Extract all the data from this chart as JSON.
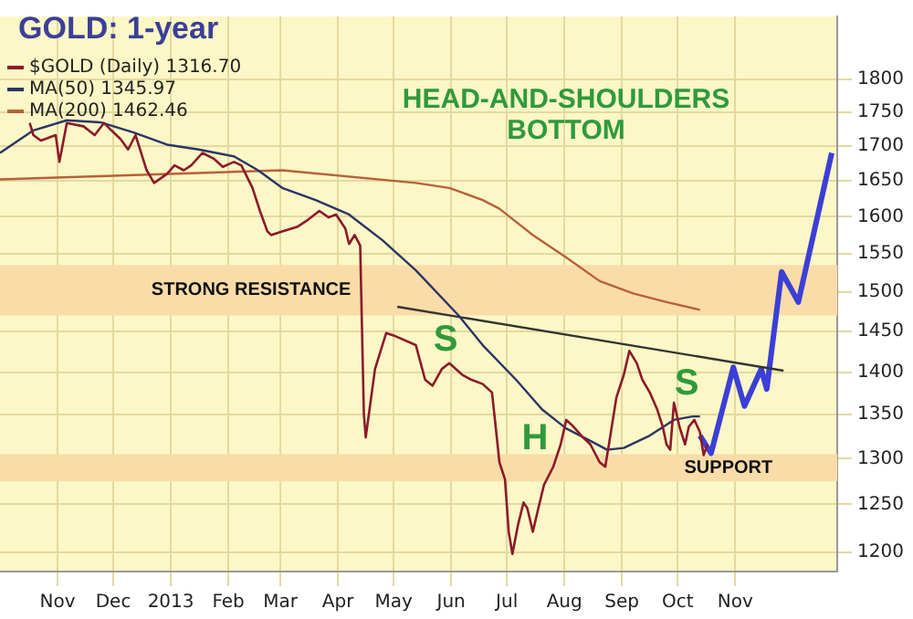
{
  "chart_data": {
    "type": "line",
    "title": "GOLD: 1-year",
    "log": "y",
    "grid": true,
    "legend": "top left",
    "xlim": [
      "2012-10-01",
      "2013-12-26"
    ],
    "ylim": [
      1180,
      1900
    ],
    "xticks": [
      {
        "value": "2012-11-01",
        "label": "Nov"
      },
      {
        "value": "2012-12-01",
        "label": "Dec"
      },
      {
        "value": "2013-01-01",
        "label": "2013"
      },
      {
        "value": "2013-02-01",
        "label": "Feb"
      },
      {
        "value": "2013-03-01",
        "label": "Mar"
      },
      {
        "value": "2013-04-01",
        "label": "Apr"
      },
      {
        "value": "2013-05-01",
        "label": "May"
      },
      {
        "value": "2013-06-01",
        "label": "Jun"
      },
      {
        "value": "2013-07-01",
        "label": "Jul"
      },
      {
        "value": "2013-08-01",
        "label": "Aug"
      },
      {
        "value": "2013-09-01",
        "label": "Sep"
      },
      {
        "value": "2013-10-01",
        "label": "Oct"
      },
      {
        "value": "2013-11-01",
        "label": "Nov"
      }
    ],
    "yticks": [
      1200,
      1250,
      1300,
      1350,
      1400,
      1450,
      1500,
      1550,
      1600,
      1650,
      1700,
      1750,
      1800
    ],
    "series": [
      {
        "name": "$GOLD (Daily) 1316.70",
        "color": "#8b1a2b",
        "x": [
          "2012-10-17",
          "2012-10-19",
          "2012-10-23",
          "2012-10-31",
          "2012-11-02",
          "2012-11-06",
          "2012-11-15",
          "2012-11-21",
          "2012-11-26",
          "2012-11-30",
          "2012-12-05",
          "2012-12-09",
          "2012-12-13",
          "2012-12-19",
          "2012-12-23",
          "2012-12-30",
          "2013-01-03",
          "2013-01-08",
          "2013-01-12",
          "2013-01-18",
          "2013-01-24",
          "2013-01-29",
          "2013-02-04",
          "2013-02-08",
          "2013-02-14",
          "2013-02-18",
          "2013-02-22",
          "2013-02-24",
          "2013-03-02",
          "2013-03-10",
          "2013-03-16",
          "2013-03-22",
          "2013-03-27",
          "2013-03-31",
          "2013-04-05",
          "2013-04-07",
          "2013-04-10",
          "2013-04-13",
          "2013-04-15",
          "2013-04-16",
          "2013-04-21",
          "2013-04-27",
          "2013-05-01",
          "2013-05-13",
          "2013-05-18",
          "2013-05-22",
          "2013-05-27",
          "2013-05-31",
          "2013-06-07",
          "2013-06-12",
          "2013-06-18",
          "2013-06-23",
          "2013-06-25",
          "2013-06-27",
          "2013-06-30",
          "2013-07-02",
          "2013-07-04",
          "2013-07-07",
          "2013-07-10",
          "2013-07-12",
          "2013-07-15",
          "2013-07-18",
          "2013-07-21",
          "2013-07-26",
          "2013-07-30",
          "2013-08-02",
          "2013-08-06",
          "2013-08-11",
          "2013-08-15",
          "2013-08-20",
          "2013-08-23",
          "2013-08-25",
          "2013-08-29",
          "2013-09-02",
          "2013-09-05",
          "2013-09-09",
          "2013-09-12",
          "2013-09-16",
          "2013-09-20",
          "2013-09-23",
          "2013-09-25",
          "2013-09-27",
          "2013-09-29",
          "2013-10-02",
          "2013-10-05",
          "2013-10-07",
          "2013-10-10",
          "2013-10-13",
          "2013-10-15",
          "2013-10-17"
        ],
        "values": [
          1734,
          1716,
          1708,
          1716,
          1677,
          1734,
          1729,
          1716,
          1734,
          1723,
          1710,
          1695,
          1716,
          1665,
          1647,
          1660,
          1672,
          1665,
          1672,
          1690,
          1682,
          1670,
          1677,
          1672,
          1640,
          1608,
          1580,
          1575,
          1580,
          1586,
          1596,
          1608,
          1599,
          1603,
          1584,
          1563,
          1575,
          1561,
          1350,
          1324,
          1404,
          1448,
          1445,
          1433,
          1391,
          1384,
          1404,
          1411,
          1397,
          1391,
          1386,
          1376,
          1336,
          1296,
          1277,
          1221,
          1198,
          1228,
          1252,
          1246,
          1221,
          1246,
          1271,
          1291,
          1316,
          1344,
          1336,
          1324,
          1316,
          1296,
          1291,
          1316,
          1370,
          1397,
          1426,
          1411,
          1391,
          1376,
          1356,
          1336,
          1316,
          1310,
          1364,
          1336,
          1316,
          1336,
          1344,
          1330,
          1304,
          1316
        ]
      },
      {
        "name": "MA(50) 1345.97",
        "color": "#2a3566",
        "x": [
          "2012-10-01",
          "2012-10-19",
          "2012-11-06",
          "2012-11-24",
          "2012-12-12",
          "2012-12-30",
          "2013-01-16",
          "2013-02-04",
          "2013-02-17",
          "2013-03-02",
          "2013-03-20",
          "2013-04-07",
          "2013-04-25",
          "2013-05-13",
          "2013-06-05",
          "2013-06-18",
          "2013-07-06",
          "2013-07-20",
          "2013-08-02",
          "2013-08-15",
          "2013-08-24",
          "2013-09-02",
          "2013-09-16",
          "2013-09-29",
          "2013-10-09",
          "2013-10-13"
        ],
        "values": [
          1690,
          1723,
          1738,
          1735,
          1720,
          1702,
          1695,
          1685,
          1665,
          1640,
          1623,
          1603,
          1568,
          1528,
          1470,
          1433,
          1391,
          1356,
          1334,
          1320,
          1310,
          1312,
          1326,
          1344,
          1348,
          1348
        ]
      },
      {
        "name": "MA(200) 1462.46",
        "color": "#b8603a",
        "x": [
          "2012-10-01",
          "2013-03-02",
          "2013-05-13",
          "2013-05-31",
          "2013-06-18",
          "2013-06-27",
          "2013-07-15",
          "2013-08-02",
          "2013-08-20",
          "2013-09-07",
          "2013-09-25",
          "2013-10-13"
        ],
        "values": [
          1652,
          1665,
          1647,
          1640,
          1623,
          1611,
          1575,
          1545,
          1514,
          1498,
          1487,
          1477
        ]
      },
      {
        "color": "#333333",
        "x": [
          "2013-05-03",
          "2013-11-27"
        ],
        "values": [
          1481,
          1402
        ]
      },
      {
        "color": "#3b3fd6",
        "x": [
          "2013-10-13",
          "2013-10-19",
          "2013-10-31",
          "2013-11-06",
          "2013-11-15",
          "2013-11-18",
          "2013-11-26",
          "2013-12-05",
          "2013-12-23"
        ],
        "values": [
          1326,
          1306,
          1406,
          1360,
          1404,
          1380,
          1526,
          1487,
          1690
        ]
      }
    ],
    "bands": [
      {
        "axis": "y",
        "from": 1470,
        "to": 1535,
        "label": "STRONG RESISTANCE",
        "color": "#f9dca8"
      },
      {
        "axis": "y",
        "from": 1275,
        "to": 1305,
        "label": "SUPPORT",
        "color": "#f9dca8"
      }
    ],
    "annotations": [
      "HEAD-AND-SHOULDERS BOTTOM",
      "S",
      "H",
      "S"
    ]
  }
}
